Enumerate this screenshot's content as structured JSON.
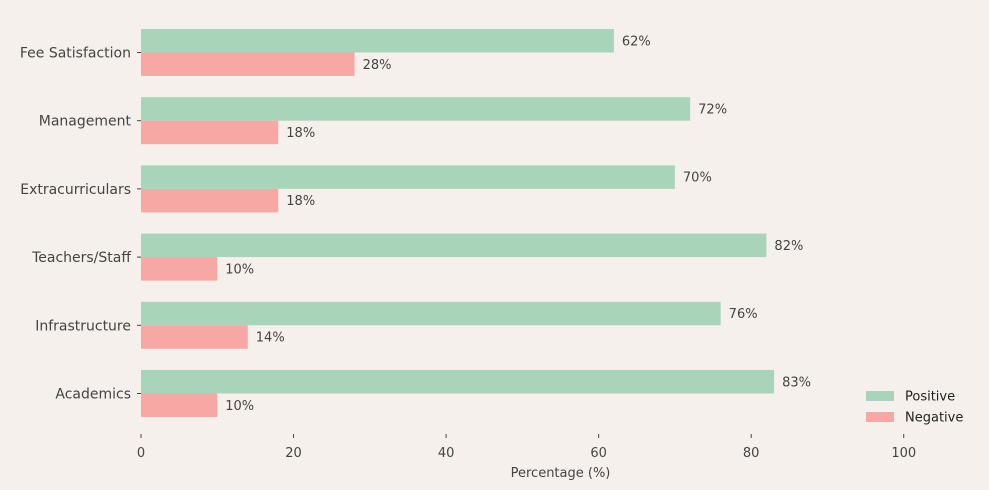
{
  "chart_data": {
    "type": "bar",
    "orientation": "horizontal",
    "categories": [
      "Fee Satisfaction",
      "Management",
      "Extracurriculars",
      "Teachers/Staff",
      "Infrastructure",
      "Academics"
    ],
    "series": [
      {
        "name": "Positive",
        "color": "#a8d5ba",
        "values": [
          62,
          72,
          70,
          82,
          76,
          83
        ],
        "labels": [
          "62%",
          "72%",
          "70%",
          "82%",
          "76%",
          "83%"
        ]
      },
      {
        "name": "Negative",
        "color": "#f7a8a4",
        "values": [
          28,
          18,
          18,
          10,
          14,
          10
        ],
        "labels": [
          "28%",
          "18%",
          "18%",
          "10%",
          "14%",
          "10%"
        ]
      }
    ],
    "xlabel": "Percentage (%)",
    "xlim": [
      0,
      110
    ],
    "xticks": [
      0,
      20,
      40,
      60,
      80,
      100
    ],
    "xtick_labels": [
      "0",
      "20",
      "40",
      "60",
      "80",
      "100"
    ],
    "grid": false,
    "legend_position": "bottom-right"
  }
}
